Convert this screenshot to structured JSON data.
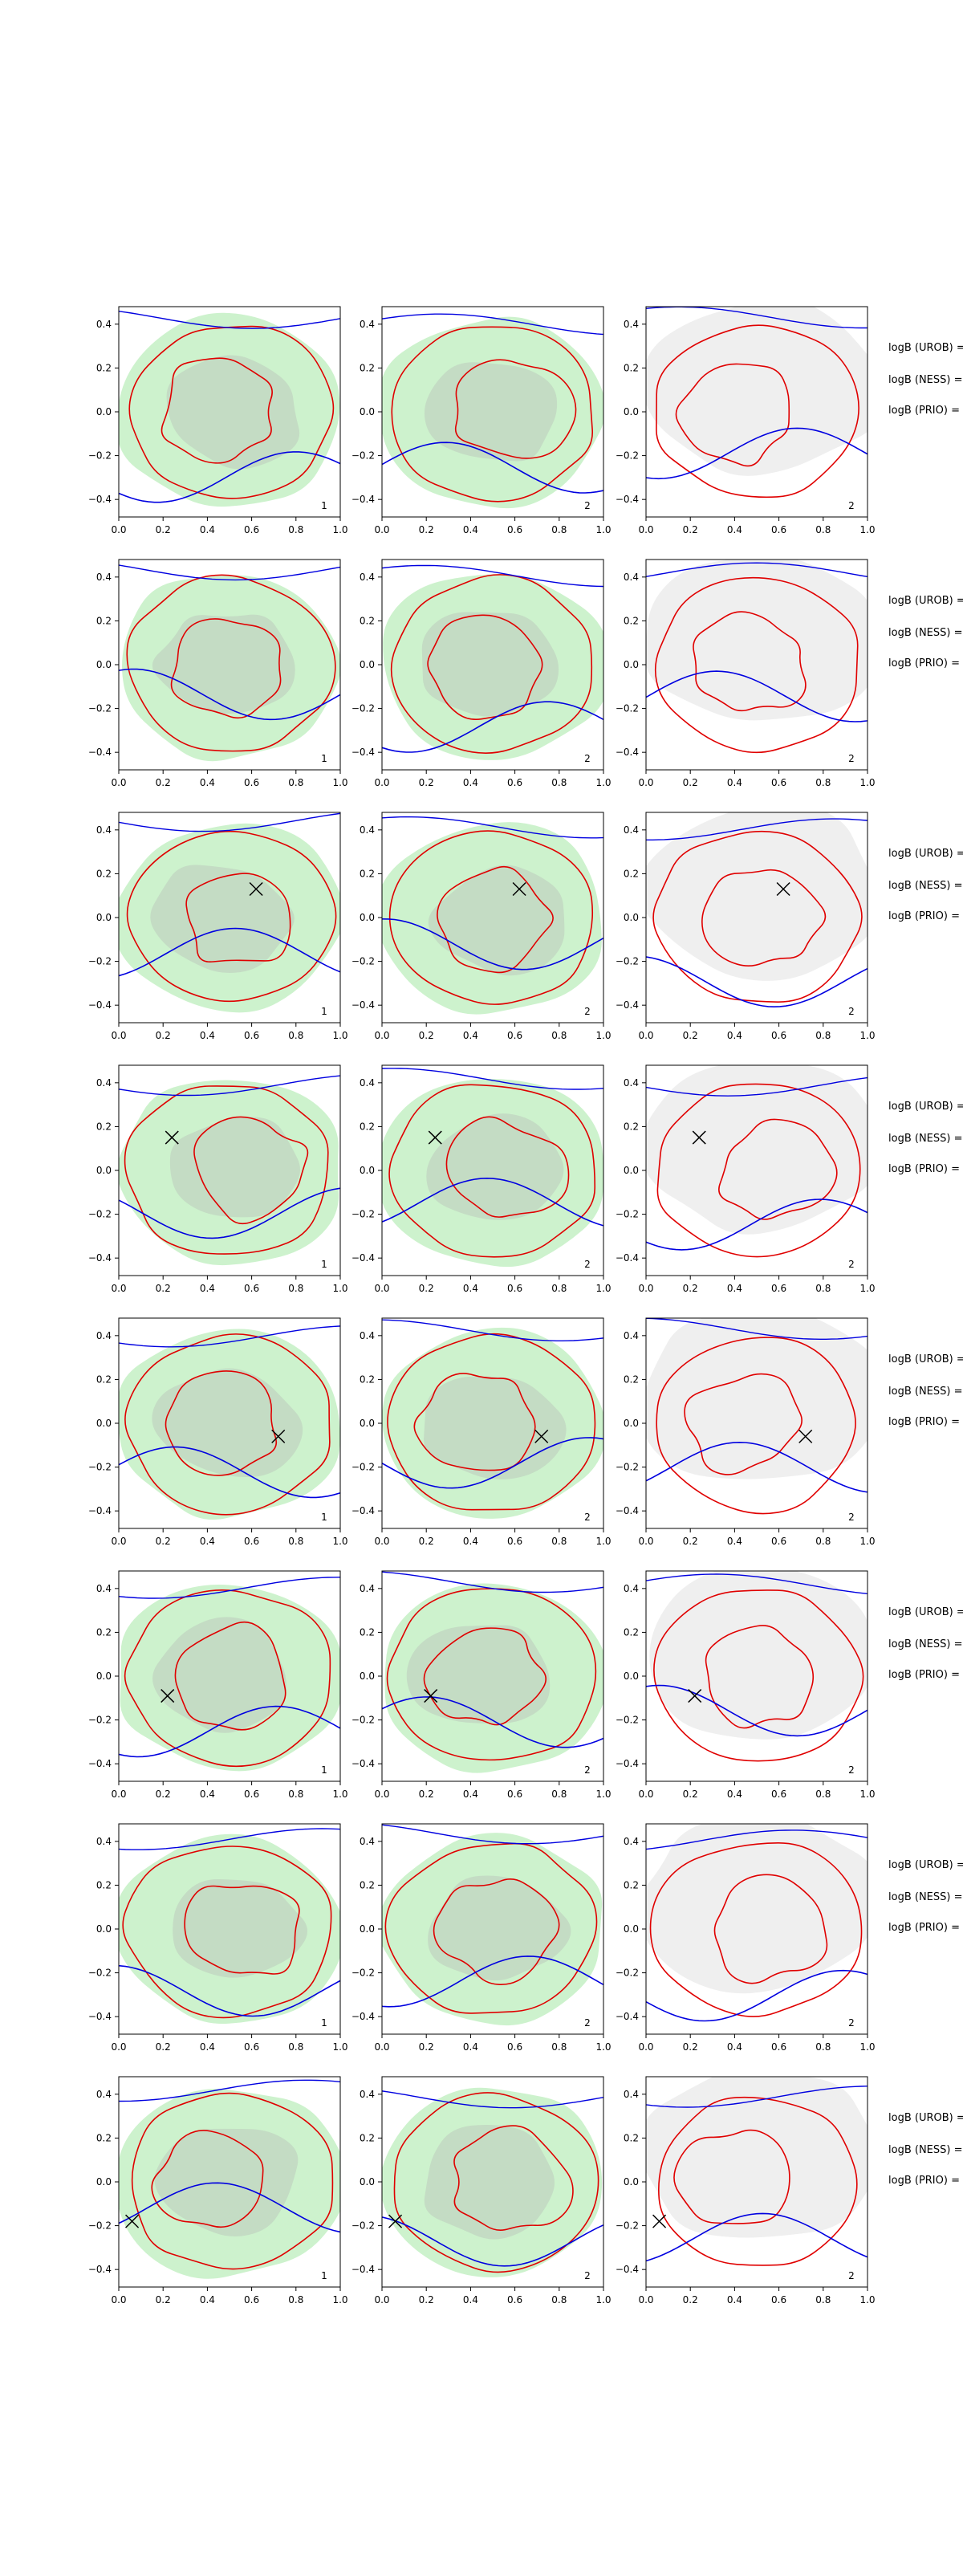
{
  "chart_data": {
    "type": "contour",
    "grid": "off",
    "x_ticks": [
      "0.0",
      "0.2",
      "0.4",
      "0.6",
      "0.8",
      "1.0"
    ],
    "y_ticks": [
      "0.4",
      "0.2",
      "0.0",
      "−0.2",
      "−0.4"
    ],
    "xlim": [
      0,
      1
    ],
    "ylim": [
      -0.48,
      0.48
    ],
    "side_labels": [
      "logB (UROB) =",
      "logB (NESS) =",
      "logB (PRIO) ="
    ],
    "colors": {
      "fill_outer": "#cdf2cd",
      "fill_inner": "#c0d4c0",
      "fill_gray": "#efefef",
      "contour_red": "#e00000",
      "contour_blue": "#0000e0",
      "marker": "#000000"
    },
    "rows": [
      {
        "panel_labels": [
          "1",
          "2",
          "2"
        ],
        "marker": null
      },
      {
        "panel_labels": [
          "1",
          "2",
          "2"
        ],
        "marker": null
      },
      {
        "panel_labels": [
          "1",
          "2",
          "2"
        ],
        "marker": [
          0.62,
          0.13
        ]
      },
      {
        "panel_labels": [
          "1",
          "2",
          "2"
        ],
        "marker": [
          0.24,
          0.15
        ]
      },
      {
        "panel_labels": [
          "1",
          "2",
          "2"
        ],
        "marker": [
          0.72,
          -0.06
        ]
      },
      {
        "panel_labels": [
          "1",
          "2",
          "2"
        ],
        "marker": [
          0.22,
          -0.09
        ]
      },
      {
        "panel_labels": [
          "1",
          "2",
          "2"
        ],
        "marker": null
      },
      {
        "panel_labels": [
          "1",
          "2",
          "2"
        ],
        "marker": [
          0.06,
          -0.18
        ]
      }
    ]
  }
}
